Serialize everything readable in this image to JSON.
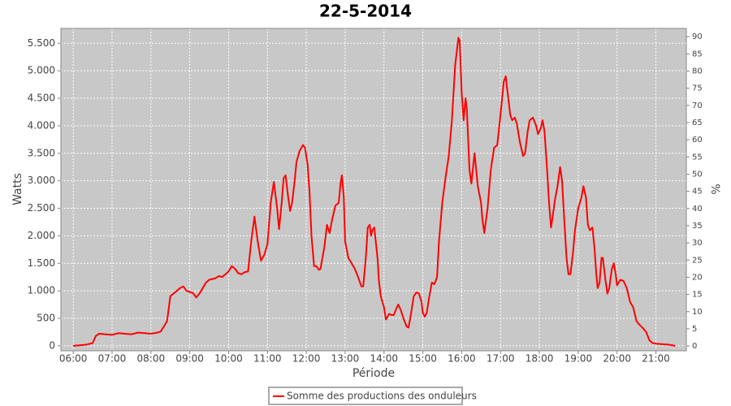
{
  "chart_data": {
    "type": "line",
    "title": "22-5-2014",
    "x_label": "Période",
    "y_label": "Watts",
    "y2_label": "%",
    "x": [
      "06:00",
      "06:10",
      "06:20",
      "06:30",
      "06:35",
      "06:40",
      "06:50",
      "07:00",
      "07:10",
      "07:20",
      "07:30",
      "07:40",
      "07:50",
      "08:00",
      "08:10",
      "08:15",
      "08:20",
      "08:25",
      "08:30",
      "08:40",
      "08:45",
      "08:50",
      "08:55",
      "09:00",
      "09:05",
      "09:10",
      "09:15",
      "09:20",
      "09:25",
      "09:30",
      "09:40",
      "09:45",
      "09:50",
      "10:00",
      "10:05",
      "10:10",
      "10:15",
      "10:20",
      "10:25",
      "10:30",
      "10:35",
      "10:40",
      "10:45",
      "10:50",
      "10:55",
      "11:00",
      "11:05",
      "11:10",
      "11:15",
      "11:18",
      "11:22",
      "11:25",
      "11:28",
      "11:32",
      "11:35",
      "11:38",
      "11:42",
      "11:45",
      "11:50",
      "11:55",
      "11:58",
      "12:02",
      "12:05",
      "12:08",
      "12:12",
      "12:15",
      "12:20",
      "12:22",
      "12:28",
      "12:32",
      "12:36",
      "12:40",
      "12:45",
      "12:50",
      "12:53",
      "12:55",
      "12:58",
      "13:00",
      "13:05",
      "13:10",
      "13:15",
      "13:20",
      "13:25",
      "13:28",
      "13:32",
      "13:35",
      "13:38",
      "13:40",
      "13:42",
      "13:45",
      "13:50",
      "13:52",
      "13:55",
      "14:00",
      "14:03",
      "14:08",
      "14:12",
      "14:15",
      "14:20",
      "14:22",
      "14:26",
      "14:30",
      "14:35",
      "14:38",
      "14:42",
      "14:46",
      "14:50",
      "14:54",
      "14:58",
      "15:00",
      "15:03",
      "15:06",
      "15:10",
      "15:14",
      "15:18",
      "15:22",
      "15:25",
      "15:30",
      "15:35",
      "15:40",
      "15:45",
      "15:50",
      "15:55",
      "15:57",
      "16:00",
      "16:03",
      "16:06",
      "16:08",
      "16:12",
      "16:15",
      "16:18",
      "16:20",
      "16:25",
      "16:30",
      "16:32",
      "16:35",
      "16:40",
      "16:45",
      "16:50",
      "16:55",
      "17:00",
      "17:05",
      "17:08",
      "17:10",
      "17:15",
      "17:18",
      "17:22",
      "17:25",
      "17:30",
      "17:35",
      "17:38",
      "17:42",
      "17:45",
      "17:50",
      "17:55",
      "17:58",
      "18:02",
      "18:05",
      "18:08",
      "18:12",
      "18:15",
      "18:18",
      "18:20",
      "18:24",
      "18:28",
      "18:32",
      "18:35",
      "18:38",
      "18:42",
      "18:45",
      "18:48",
      "18:52",
      "18:55",
      "19:00",
      "19:05",
      "19:08",
      "19:12",
      "19:15",
      "19:18",
      "19:22",
      "19:25",
      "19:28",
      "19:30",
      "19:33",
      "19:36",
      "19:38",
      "19:42",
      "19:45",
      "19:48",
      "19:52",
      "19:55",
      "19:58",
      "20:00",
      "20:05",
      "20:10",
      "20:15",
      "20:20",
      "20:25",
      "20:30",
      "20:35",
      "20:40",
      "20:45",
      "20:50",
      "20:55",
      "21:00",
      "21:10",
      "21:20",
      "21:30"
    ],
    "series": [
      {
        "name": "Somme des productions des onduleurs",
        "color": "#ff0000",
        "values": [
          0,
          10,
          20,
          50,
          180,
          220,
          210,
          200,
          230,
          220,
          210,
          240,
          230,
          220,
          240,
          260,
          350,
          450,
          900,
          1000,
          1050,
          1080,
          1000,
          980,
          960,
          880,
          950,
          1050,
          1150,
          1200,
          1230,
          1270,
          1250,
          1350,
          1450,
          1400,
          1320,
          1300,
          1340,
          1350,
          1900,
          2350,
          1900,
          1550,
          1650,
          1850,
          2600,
          2980,
          2500,
          2120,
          2600,
          3050,
          3100,
          2700,
          2450,
          2600,
          3000,
          3350,
          3550,
          3650,
          3600,
          3300,
          2800,
          2000,
          1450,
          1450,
          1380,
          1400,
          1800,
          2200,
          2050,
          2300,
          2550,
          2600,
          2950,
          3100,
          2700,
          1900,
          1600,
          1500,
          1400,
          1250,
          1080,
          1080,
          1600,
          2150,
          2200,
          2000,
          2100,
          2150,
          1600,
          1200,
          900,
          700,
          480,
          580,
          560,
          560,
          700,
          750,
          650,
          500,
          350,
          330,
          600,
          900,
          970,
          950,
          800,
          600,
          530,
          600,
          900,
          1150,
          1120,
          1250,
          1900,
          2600,
          3050,
          3450,
          4100,
          5100,
          5600,
          5550,
          4600,
          4100,
          4500,
          4300,
          3200,
          2950,
          3300,
          3500,
          2900,
          2600,
          2300,
          2050,
          2500,
          3200,
          3600,
          3650,
          4200,
          4800,
          4900,
          4700,
          4200,
          4100,
          4150,
          4050,
          3700,
          3450,
          3500,
          3900,
          4100,
          4150,
          4000,
          3850,
          3950,
          4100,
          3900,
          3200,
          2600,
          2150,
          2300,
          2650,
          2900,
          3250,
          3000,
          2400,
          1600,
          1300,
          1300,
          1700,
          2100,
          2500,
          2700,
          2900,
          2700,
          2200,
          2100,
          2150,
          1800,
          1300,
          1050,
          1150,
          1600,
          1600,
          1200,
          950,
          1050,
          1400,
          1500,
          1300,
          1100,
          1200,
          1180,
          1050,
          800,
          700,
          450,
          380,
          320,
          250,
          100,
          50,
          40,
          30,
          20,
          0
        ]
      }
    ],
    "xlim": [
      "05:41",
      "21:47"
    ],
    "xticks": [
      "06:00",
      "07:00",
      "08:00",
      "09:00",
      "10:00",
      "11:00",
      "12:00",
      "13:00",
      "14:00",
      "15:00",
      "16:00",
      "17:00",
      "18:00",
      "19:00",
      "20:00",
      "21:00"
    ],
    "ylim": [
      -90,
      5770
    ],
    "yticks": [
      0,
      500,
      {
        "value": 1000,
        "label": "1.000"
      },
      {
        "value": 1500,
        "label": "1.500"
      },
      {
        "value": 2000,
        "label": "2.000"
      },
      {
        "value": 2500,
        "label": "2.500"
      },
      {
        "value": 3000,
        "label": "3.000"
      },
      {
        "value": 3500,
        "label": "3.500"
      },
      {
        "value": 4000,
        "label": "4.000"
      },
      {
        "value": 4500,
        "label": "4.500"
      },
      {
        "value": 5000,
        "label": "5.000"
      },
      {
        "value": 5500,
        "label": "5.500"
      }
    ],
    "y2lim": [
      -1.4,
      92.4
    ],
    "y2ticks": [
      0,
      5,
      10,
      15,
      20,
      25,
      30,
      35,
      40,
      45,
      50,
      55,
      60,
      65,
      70,
      75,
      80,
      85,
      90
    ],
    "grid": true
  }
}
